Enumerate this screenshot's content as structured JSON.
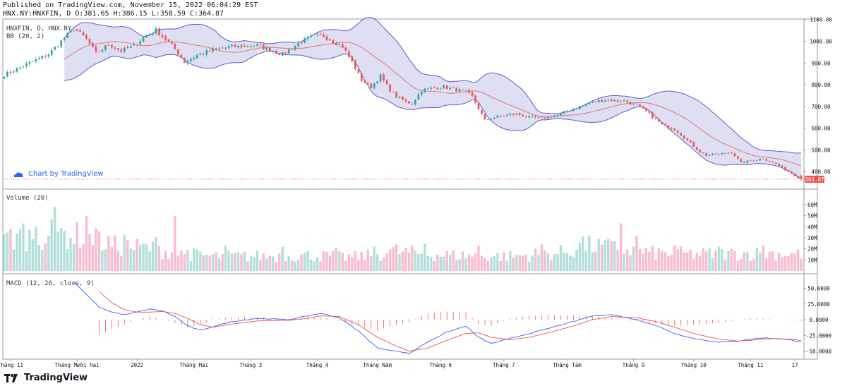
{
  "header": {
    "published": "Published on TradingView.com, November 15, 2022 06:04:29 EST",
    "ohlc": "HNX.NY:HNXFIN, D O:381.65 H:386.15 L:358.59 C:364.87"
  },
  "price_pane": {
    "symbol_label": "HNXFIN, D, HNX.NY",
    "bb_label": "BB (20, 2)",
    "watermark": "Chart by TradingView",
    "last_price": "364.87"
  },
  "volume_pane": {
    "label": "Volume (20)"
  },
  "macd_pane": {
    "label": "MACD (12, 26, close, 9)"
  },
  "footer": {
    "brand": "TradingView"
  },
  "colors": {
    "up": "#26a69a",
    "down": "#ef5350",
    "up_vol": "#b2dfdb",
    "down_vol": "#f8bbd0",
    "band": "#5b5bd6",
    "band_fill": "#d4d4ef",
    "mid": "#e57373",
    "macd": "#3d5afe",
    "signal": "#ef5350"
  },
  "chart_data": [
    {
      "type": "candlestick",
      "title": "HNXFIN, D, HNX.NY",
      "ylim": [
        355,
        1120
      ],
      "yticks": [
        400,
        500,
        600,
        700,
        800,
        900,
        1000,
        1100
      ],
      "ytick_labels": [
        "400.00",
        "500.00",
        "600.00",
        "700.00",
        "800.00",
        "900.00",
        "1000.00",
        "1100.00"
      ],
      "xtick_labels": [
        "Tháng 11",
        "Tháng Mười hai",
        "2022",
        "Tháng Hai",
        "Tháng 3",
        "Tháng 4",
        "Tháng Năm",
        "Tháng 6",
        "Tháng 7",
        "Tháng Tám",
        "Tháng 9",
        "Tháng 10",
        "Tháng 11",
        "17"
      ],
      "xtick_index": [
        2,
        23,
        42,
        60,
        78,
        99,
        118,
        138,
        158,
        178,
        199,
        218,
        236,
        250
      ],
      "n_bars": 253,
      "close_anchors": [
        [
          0,
          845
        ],
        [
          8,
          900
        ],
        [
          14,
          940
        ],
        [
          22,
          1060
        ],
        [
          26,
          1010
        ],
        [
          29,
          945
        ],
        [
          33,
          985
        ],
        [
          37,
          955
        ],
        [
          41,
          980
        ],
        [
          45,
          1030
        ],
        [
          48,
          1050
        ],
        [
          51,
          1010
        ],
        [
          54,
          965
        ],
        [
          57,
          905
        ],
        [
          61,
          935
        ],
        [
          66,
          960
        ],
        [
          72,
          975
        ],
        [
          80,
          980
        ],
        [
          84,
          960
        ],
        [
          88,
          940
        ],
        [
          93,
          990
        ],
        [
          98,
          1025
        ],
        [
          101,
          1025
        ],
        [
          107,
          975
        ],
        [
          110,
          905
        ],
        [
          113,
          820
        ],
        [
          116,
          790
        ],
        [
          119,
          840
        ],
        [
          122,
          775
        ],
        [
          124,
          745
        ],
        [
          127,
          720
        ],
        [
          129,
          715
        ],
        [
          132,
          775
        ],
        [
          136,
          785
        ],
        [
          139,
          790
        ],
        [
          143,
          775
        ],
        [
          146,
          770
        ],
        [
          148,
          745
        ],
        [
          150,
          690
        ],
        [
          152,
          635
        ],
        [
          155,
          650
        ],
        [
          159,
          660
        ],
        [
          162,
          665
        ],
        [
          166,
          650
        ],
        [
          170,
          645
        ],
        [
          175,
          660
        ],
        [
          180,
          690
        ],
        [
          186,
          720
        ],
        [
          190,
          730
        ],
        [
          196,
          725
        ],
        [
          200,
          705
        ],
        [
          204,
          665
        ],
        [
          208,
          615
        ],
        [
          212,
          595
        ],
        [
          216,
          545
        ],
        [
          220,
          490
        ],
        [
          222,
          475
        ],
        [
          226,
          480
        ],
        [
          230,
          490
        ],
        [
          233,
          440
        ],
        [
          236,
          450
        ],
        [
          240,
          460
        ],
        [
          244,
          435
        ],
        [
          248,
          400
        ],
        [
          252,
          364.87
        ]
      ],
      "bollinger": {
        "period": 20,
        "stddev": 2
      },
      "last_price": 364.87,
      "legend": "BB (20, 2)"
    },
    {
      "type": "bar",
      "title": "Volume (20)",
      "ylim": [
        0,
        65000000
      ],
      "yticks": [
        10000000,
        20000000,
        30000000,
        40000000,
        50000000,
        60000000
      ],
      "ytick_labels": [
        "10M",
        "20M",
        "30M",
        "40M",
        "50M",
        "60M"
      ],
      "volume_profile_M": [
        [
          0,
          30
        ],
        [
          15,
          35
        ],
        [
          25,
          33
        ],
        [
          35,
          24
        ],
        [
          45,
          22
        ],
        [
          55,
          17
        ],
        [
          65,
          14
        ],
        [
          80,
          14
        ],
        [
          95,
          15
        ],
        [
          110,
          13
        ],
        [
          125,
          18
        ],
        [
          140,
          15
        ],
        [
          160,
          14
        ],
        [
          175,
          17
        ],
        [
          185,
          24
        ],
        [
          195,
          21
        ],
        [
          205,
          17
        ],
        [
          220,
          16
        ],
        [
          240,
          17
        ],
        [
          252,
          16
        ]
      ],
      "spikes_M": [
        [
          2,
          38
        ],
        [
          6,
          43
        ],
        [
          10,
          40
        ],
        [
          16,
          58
        ],
        [
          18,
          39
        ],
        [
          26,
          50
        ],
        [
          30,
          36
        ],
        [
          38,
          33
        ],
        [
          48,
          31
        ],
        [
          54,
          50
        ],
        [
          58,
          19
        ],
        [
          70,
          23
        ],
        [
          88,
          22
        ],
        [
          105,
          21
        ],
        [
          117,
          22
        ],
        [
          124,
          24
        ],
        [
          133,
          25
        ],
        [
          150,
          23
        ],
        [
          170,
          24
        ],
        [
          183,
          31
        ],
        [
          190,
          28
        ],
        [
          195,
          43
        ],
        [
          200,
          32
        ],
        [
          212,
          23
        ],
        [
          226,
          22
        ],
        [
          240,
          23
        ]
      ]
    },
    {
      "type": "line",
      "title": "MACD (12, 26, close, 9)",
      "ylim": [
        -62,
        62
      ],
      "yticks": [
        -50,
        -25,
        0,
        25,
        50
      ],
      "ytick_labels": [
        "-50.0000",
        "-25.0000",
        "0.0000",
        "25.0000",
        "50.0000"
      ],
      "series": [
        {
          "name": "MACD",
          "anchors": [
            [
              22,
              60
            ],
            [
              26,
              40
            ],
            [
              30,
              20
            ],
            [
              34,
              12
            ],
            [
              38,
              8
            ],
            [
              42,
              12
            ],
            [
              46,
              17
            ],
            [
              50,
              14
            ],
            [
              54,
              5
            ],
            [
              58,
              -10
            ],
            [
              62,
              -17
            ],
            [
              66,
              -11
            ],
            [
              72,
              -3
            ],
            [
              80,
              2
            ],
            [
              90,
              0
            ],
            [
              96,
              6
            ],
            [
              100,
              10
            ],
            [
              106,
              3
            ],
            [
              112,
              -18
            ],
            [
              118,
              -45
            ],
            [
              124,
              -50
            ],
            [
              128,
              -54
            ],
            [
              134,
              -35
            ],
            [
              140,
              -20
            ],
            [
              146,
              -10
            ],
            [
              150,
              -28
            ],
            [
              154,
              -38
            ],
            [
              160,
              -30
            ],
            [
              166,
              -22
            ],
            [
              172,
              -14
            ],
            [
              180,
              -3
            ],
            [
              186,
              6
            ],
            [
              192,
              8
            ],
            [
              200,
              0
            ],
            [
              206,
              -9
            ],
            [
              212,
              -22
            ],
            [
              218,
              -30
            ],
            [
              226,
              -36
            ],
            [
              232,
              -34
            ],
            [
              236,
              -31
            ],
            [
              240,
              -29
            ],
            [
              244,
              -30
            ],
            [
              248,
              -32
            ],
            [
              252,
              -35
            ]
          ]
        },
        {
          "name": "Signal",
          "anchors": [
            [
              30,
              45
            ],
            [
              34,
              27
            ],
            [
              38,
              16
            ],
            [
              42,
              12
            ],
            [
              46,
              12
            ],
            [
              50,
              13
            ],
            [
              54,
              10
            ],
            [
              58,
              2
            ],
            [
              62,
              -8
            ],
            [
              66,
              -12
            ],
            [
              72,
              -7
            ],
            [
              80,
              -2
            ],
            [
              90,
              -1
            ],
            [
              96,
              2
            ],
            [
              100,
              6
            ],
            [
              106,
              5
            ],
            [
              112,
              -8
            ],
            [
              118,
              -28
            ],
            [
              124,
              -42
            ],
            [
              128,
              -50
            ],
            [
              134,
              -45
            ],
            [
              140,
              -33
            ],
            [
              146,
              -22
            ],
            [
              150,
              -21
            ],
            [
              154,
              -28
            ],
            [
              160,
              -32
            ],
            [
              166,
              -28
            ],
            [
              172,
              -21
            ],
            [
              180,
              -10
            ],
            [
              186,
              0
            ],
            [
              192,
              5
            ],
            [
              200,
              3
            ],
            [
              206,
              -3
            ],
            [
              212,
              -12
            ],
            [
              218,
              -22
            ],
            [
              226,
              -31
            ],
            [
              232,
              -34
            ],
            [
              236,
              -33
            ],
            [
              240,
              -31
            ],
            [
              244,
              -30
            ],
            [
              248,
              -31
            ],
            [
              252,
              -33
            ]
          ]
        }
      ]
    }
  ]
}
